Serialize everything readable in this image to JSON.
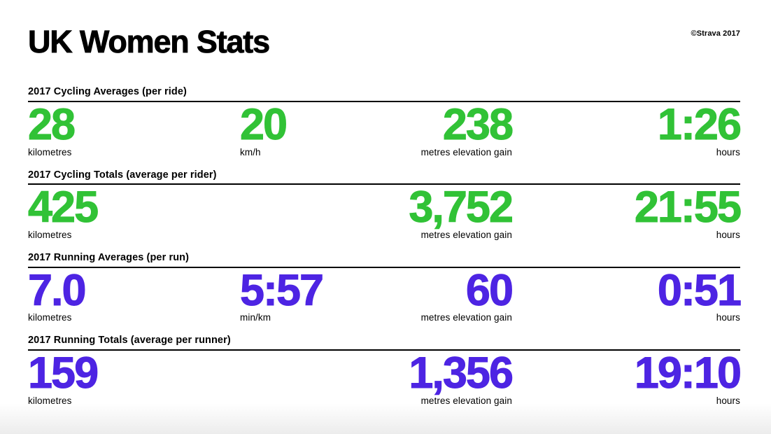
{
  "page": {
    "title": "UK Women Stats",
    "copyright": "©Strava 2017"
  },
  "colors": {
    "cycling_green": "#31c236",
    "running_purple": "#4d24e3",
    "text": "#000000",
    "background": "#ffffff"
  },
  "sections": [
    {
      "title": "2017 Cycling Averages (per ride)",
      "accent": "cycling_green",
      "stats": [
        {
          "value": "28",
          "label": "kilometres"
        },
        {
          "value": "20",
          "label": "km/h"
        },
        {
          "value": "238",
          "label": "metres elevation gain"
        },
        {
          "value": "1:26",
          "label": "hours"
        }
      ]
    },
    {
      "title": "2017 Cycling Totals (average per rider)",
      "accent": "cycling_green",
      "stats": [
        {
          "value": "425",
          "label": "kilometres"
        },
        {
          "value": "3,752",
          "label": "metres elevation gain"
        },
        {
          "value": "21:55",
          "label": "hours"
        }
      ]
    },
    {
      "title": "2017 Running Averages (per run)",
      "accent": "running_purple",
      "stats": [
        {
          "value": "7.0",
          "label": "kilometres"
        },
        {
          "value": "5:57",
          "label": "min/km"
        },
        {
          "value": "60",
          "label": "metres elevation gain"
        },
        {
          "value": "0:51",
          "label": "hours"
        }
      ]
    },
    {
      "title": "2017 Running Totals (average per runner)",
      "accent": "running_purple",
      "stats": [
        {
          "value": "159",
          "label": "kilometres"
        },
        {
          "value": "1,356",
          "label": "metres elevation gain"
        },
        {
          "value": "19:10",
          "label": "hours"
        }
      ]
    }
  ],
  "chart_data": {
    "type": "table",
    "title": "UK Women Stats",
    "attribution": "©Strava 2017",
    "groups": [
      {
        "name": "2017 Cycling Averages (per ride)",
        "metrics": [
          "kilometres",
          "km/h",
          "metres elevation gain",
          "hours"
        ],
        "values": [
          28,
          20,
          238,
          "1:26"
        ]
      },
      {
        "name": "2017 Cycling Totals (average per rider)",
        "metrics": [
          "kilometres",
          "metres elevation gain",
          "hours"
        ],
        "values": [
          425,
          3752,
          "21:55"
        ]
      },
      {
        "name": "2017 Running Averages (per run)",
        "metrics": [
          "kilometres",
          "min/km",
          "metres elevation gain",
          "hours"
        ],
        "values": [
          7.0,
          "5:57",
          60,
          "0:51"
        ]
      },
      {
        "name": "2017 Running Totals (average per runner)",
        "metrics": [
          "kilometres",
          "metres elevation gain",
          "hours"
        ],
        "values": [
          159,
          1356,
          "19:10"
        ]
      }
    ]
  }
}
